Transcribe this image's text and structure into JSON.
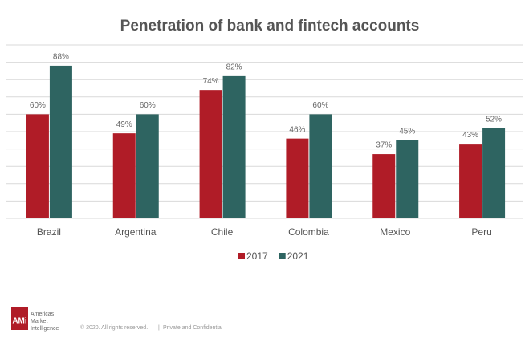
{
  "chart_data": {
    "type": "bar",
    "title": "Penetration of bank and fintech accounts",
    "categories": [
      "Brazil",
      "Argentina",
      "Chile",
      "Colombia",
      "Mexico",
      "Peru"
    ],
    "series": [
      {
        "name": "2017",
        "color": "#b01c27",
        "values": [
          60,
          49,
          74,
          46,
          37,
          43
        ],
        "value_labels": [
          "60%",
          "49%",
          "74%",
          "46%",
          "37%",
          "43%"
        ]
      },
      {
        "name": "2021",
        "color": "#2e6461",
        "values": [
          88,
          60,
          82,
          60,
          45,
          52
        ],
        "value_labels": [
          "88%",
          "60%",
          "82%",
          "60%",
          "45%",
          "52%"
        ]
      }
    ],
    "ylim": [
      0,
      100
    ],
    "yticks": [
      0,
      10,
      20,
      30,
      40,
      50,
      60,
      70,
      80,
      90,
      100
    ],
    "grid": true,
    "legend": "bottom"
  },
  "footer": {
    "logo": "AMi",
    "company": [
      "Americas",
      "Market",
      "Intelligence"
    ],
    "copyright": "© 2020. All rights reserved.",
    "separator": "|",
    "confidential": "Private and Confidential"
  }
}
